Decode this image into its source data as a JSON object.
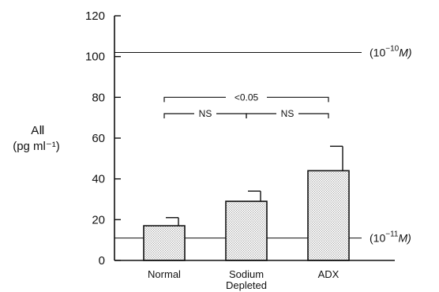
{
  "chart_data": {
    "type": "bar",
    "categories": [
      "Normal",
      "Sodium Depleted",
      "ADX"
    ],
    "category_lines": [
      [
        "Normal"
      ],
      [
        "Sodium",
        "Depleted"
      ],
      [
        "ADX"
      ]
    ],
    "values": [
      17,
      29,
      44
    ],
    "error_upper": [
      21,
      34,
      56
    ],
    "ylim": [
      0,
      120
    ],
    "yticks": [
      0,
      20,
      40,
      60,
      80,
      100,
      120
    ],
    "ylabel_lines": [
      "AⅡ",
      "(pg ml⁻¹)"
    ],
    "reference_lines": [
      {
        "value": 102,
        "label_pre": "(10",
        "label_sup": "−10",
        "label_post": "M)"
      },
      {
        "value": 11,
        "label_pre": "(10",
        "label_sup": "−11",
        "label_post": "M)"
      }
    ],
    "comparisons": [
      {
        "from": 0,
        "to": 2,
        "label": "<0.05",
        "level": 80
      },
      {
        "from": 0,
        "to": 1,
        "label": "NS",
        "level": 72
      },
      {
        "from": 1,
        "to": 2,
        "label": "NS",
        "level": 72
      }
    ]
  }
}
